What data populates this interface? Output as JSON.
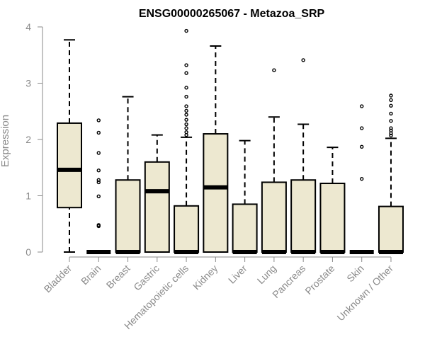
{
  "chart_data": {
    "type": "box",
    "title": "ENSG00000265067 - Metazoa_SRP",
    "ylabel": "Expression",
    "xlabel": "",
    "ylim": [
      0,
      4
    ],
    "yticks": [
      0,
      1,
      2,
      3,
      4
    ],
    "categories": [
      "Bladder",
      "Brain",
      "Breast",
      "Gastric",
      "Hematopoietic cells",
      "Kidney",
      "Liver",
      "Lung",
      "Pancreas",
      "Prostate",
      "Skin",
      "Unknown / Other"
    ],
    "boxes": [
      {
        "q1": 0.79,
        "median": 1.46,
        "q3": 2.29,
        "whisker_low": 0,
        "whisker_high": 3.77,
        "outliers": []
      },
      {
        "q1": 0,
        "median": 0,
        "q3": 0,
        "whisker_low": 0,
        "whisker_high": 0,
        "outliers": [
          0.46,
          0.48,
          0.99,
          1.24,
          1.28,
          1.45,
          1.76,
          2.12,
          2.34
        ]
      },
      {
        "q1": 0,
        "median": 0,
        "q3": 1.28,
        "whisker_low": 0,
        "whisker_high": 2.76,
        "outliers": []
      },
      {
        "q1": 0,
        "median": 1.08,
        "q3": 1.6,
        "whisker_low": 0,
        "whisker_high": 2.08,
        "outliers": []
      },
      {
        "q1": 0,
        "median": 0,
        "q3": 0.82,
        "whisker_low": 0,
        "whisker_high": 2.04,
        "outliers": [
          2.08,
          2.13,
          2.2,
          2.27,
          2.35,
          2.44,
          2.51,
          2.59,
          2.76,
          2.92,
          3.18,
          3.32,
          3.93
        ]
      },
      {
        "q1": 0,
        "median": 1.15,
        "q3": 2.1,
        "whisker_low": 0,
        "whisker_high": 3.66,
        "outliers": []
      },
      {
        "q1": 0,
        "median": 0,
        "q3": 0.85,
        "whisker_low": 0,
        "whisker_high": 1.98,
        "outliers": []
      },
      {
        "q1": 0,
        "median": 0,
        "q3": 1.24,
        "whisker_low": 0,
        "whisker_high": 2.4,
        "outliers": [
          3.23
        ]
      },
      {
        "q1": 0,
        "median": 0,
        "q3": 1.28,
        "whisker_low": 0,
        "whisker_high": 2.27,
        "outliers": [
          3.41
        ]
      },
      {
        "q1": 0,
        "median": 0,
        "q3": 1.22,
        "whisker_low": 0,
        "whisker_high": 1.86,
        "outliers": []
      },
      {
        "q1": 0,
        "median": 0,
        "q3": 0,
        "whisker_low": 0,
        "whisker_high": 0,
        "outliers": [
          1.3,
          1.87,
          2.2,
          2.59
        ]
      },
      {
        "q1": 0,
        "median": 0,
        "q3": 0.81,
        "whisker_low": 0,
        "whisker_high": 2.02,
        "outliers": [
          2.07,
          2.11,
          2.16,
          2.2,
          2.33,
          2.46,
          2.6,
          2.7,
          2.78
        ]
      }
    ],
    "box_fill": "#ede8d0",
    "box_stroke": "#000000",
    "axis_color": "#8a8a8a",
    "grid": false,
    "legend": "none"
  }
}
